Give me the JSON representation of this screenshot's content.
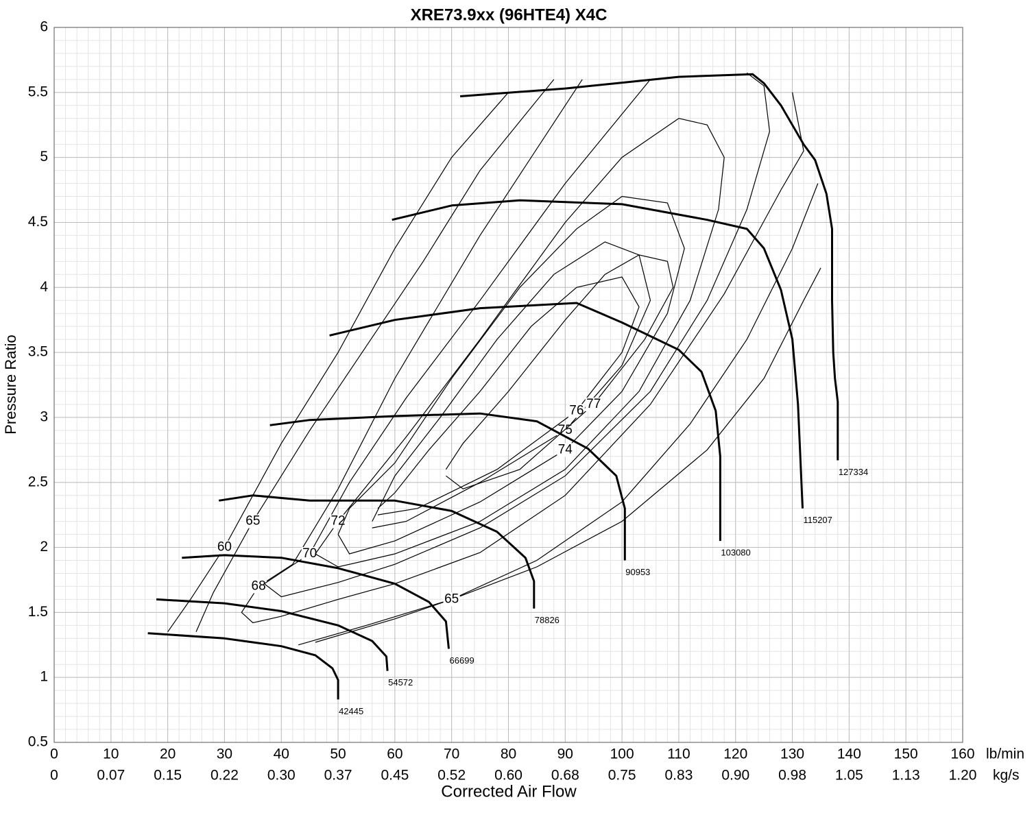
{
  "chart_data": {
    "type": "line",
    "title": "XRE73.9xx (96HTE4) X4C",
    "xlabel": "Corrected Air Flow",
    "ylabel": "Pressure Ratio",
    "xunit": "lb/min",
    "x2unit": "kg/s",
    "xlim": [
      0,
      160
    ],
    "ylim": [
      0.5,
      6
    ],
    "x2lim": [
      0,
      1.2096
    ],
    "xticks": [
      0,
      10,
      20,
      30,
      40,
      50,
      60,
      70,
      80,
      90,
      100,
      110,
      120,
      130,
      140,
      150,
      160
    ],
    "x2ticks": [
      0,
      {
        "value": 0.0756,
        "label": "0.07"
      },
      {
        "value": 0.1512,
        "label": "0.15"
      },
      {
        "value": 0.2268,
        "label": "0.22"
      },
      {
        "value": 0.3024,
        "label": "0.30"
      },
      {
        "value": 0.378,
        "label": "0.37"
      },
      {
        "value": 0.4536,
        "label": "0.45"
      },
      {
        "value": 0.5292,
        "label": "0.52"
      },
      {
        "value": 0.6048,
        "label": "0.60"
      },
      {
        "value": 0.6804,
        "label": "0.68"
      },
      {
        "value": 0.756,
        "label": "0.75"
      },
      {
        "value": 0.8316,
        "label": "0.83"
      },
      {
        "value": 0.9072,
        "label": "0.90"
      },
      {
        "value": 0.9828,
        "label": "0.98"
      },
      {
        "value": 1.0584,
        "label": "1.05"
      },
      {
        "value": 1.134,
        "label": "1.13"
      },
      {
        "value": 1.2096,
        "label": "1.20"
      }
    ],
    "yticks": [
      0.5,
      1,
      1.5,
      2,
      2.5,
      3,
      3.5,
      4,
      4.5,
      5,
      5.5,
      6
    ],
    "grid": true,
    "minor_grid": true,
    "series": [
      {
        "name": "42445",
        "color": "#000000",
        "x": [
          16.5,
          30,
          40,
          46,
          49,
          50,
          50
        ],
        "values": [
          1.34,
          1.3,
          1.24,
          1.17,
          1.07,
          0.98,
          0.83
        ]
      },
      {
        "name": "54572",
        "color": "#000000",
        "x": [
          18,
          30,
          40,
          50,
          56,
          58.5,
          58.7
        ],
        "values": [
          1.6,
          1.57,
          1.51,
          1.4,
          1.28,
          1.16,
          1.05
        ]
      },
      {
        "name": "66699",
        "color": "#000000",
        "x": [
          22.5,
          30,
          40,
          50,
          60,
          66,
          69,
          69.5
        ],
        "values": [
          1.92,
          1.94,
          1.92,
          1.84,
          1.72,
          1.58,
          1.43,
          1.22
        ]
      },
      {
        "name": "78826",
        "color": "#000000",
        "x": [
          29,
          35,
          45,
          60,
          70,
          78,
          83,
          84.5,
          84.5
        ],
        "values": [
          2.36,
          2.4,
          2.36,
          2.36,
          2.28,
          2.12,
          1.92,
          1.74,
          1.53
        ]
      },
      {
        "name": "90953",
        "color": "#000000",
        "x": [
          38,
          45,
          60,
          75,
          85,
          94,
          99,
          100.5,
          100.5
        ],
        "values": [
          2.94,
          2.98,
          3.01,
          3.03,
          2.97,
          2.76,
          2.55,
          2.3,
          1.9
        ]
      },
      {
        "name": "103080",
        "color": "#000000",
        "x": [
          48.5,
          60,
          75,
          92,
          100,
          110,
          114,
          116.5,
          117.3,
          117.3
        ],
        "values": [
          3.63,
          3.75,
          3.84,
          3.88,
          3.73,
          3.52,
          3.35,
          3.05,
          2.7,
          2.05
        ]
      },
      {
        "name": "115207",
        "color": "#000000",
        "x": [
          59.5,
          70,
          82,
          100,
          115,
          122,
          125,
          128,
          130,
          131,
          131.5,
          131.8
        ],
        "values": [
          4.52,
          4.63,
          4.67,
          4.64,
          4.52,
          4.45,
          4.3,
          3.98,
          3.6,
          3.1,
          2.6,
          2.3
        ]
      },
      {
        "name": "127334",
        "color": "#000000",
        "x": [
          71.5,
          90,
          110,
          123,
          125,
          128,
          132,
          134,
          136,
          137,
          137,
          137.2,
          137.5,
          138,
          138
        ],
        "values": [
          5.47,
          5.53,
          5.62,
          5.64,
          5.57,
          5.4,
          5.1,
          4.98,
          4.72,
          4.45,
          3.9,
          3.5,
          3.3,
          3.12,
          2.67
        ]
      }
    ],
    "contours": [
      {
        "name": "60",
        "color": "#000000",
        "x": [
          20,
          24,
          30,
          40,
          50,
          60,
          70,
          80,
          null,
          43,
          55,
          70,
          85,
          100,
          115,
          125,
          132,
          135
        ],
        "values": [
          1.35,
          1.6,
          2.0,
          2.8,
          3.5,
          4.3,
          5.0,
          5.5,
          null,
          1.25,
          1.4,
          1.6,
          1.85,
          2.2,
          2.75,
          3.3,
          3.9,
          4.15
        ]
      },
      {
        "name": "65",
        "color": "#000000",
        "x": [
          25,
          28,
          35,
          45,
          55,
          65,
          75,
          88,
          null,
          46,
          60,
          70,
          85,
          100,
          112,
          122,
          130,
          134.5
        ],
        "values": [
          1.35,
          1.65,
          2.2,
          2.9,
          3.55,
          4.2,
          4.9,
          5.6,
          null,
          1.27,
          1.45,
          1.6,
          1.9,
          2.35,
          2.95,
          3.6,
          4.3,
          4.8
        ]
      },
      {
        "name": "68",
        "color": "#000000",
        "x": [
          93,
          75,
          60,
          50,
          42,
          36,
          33,
          35,
          40,
          50,
          60,
          75,
          90,
          105,
          118,
          128,
          132,
          130
        ],
        "values": [
          5.6,
          4.4,
          3.3,
          2.45,
          1.87,
          1.7,
          1.5,
          1.42,
          1.47,
          1.6,
          1.72,
          1.96,
          2.4,
          3.1,
          3.95,
          4.75,
          5.05,
          5.5
        ]
      },
      {
        "name": "70",
        "color": "#000000",
        "x": [
          105,
          90,
          75,
          62,
          52,
          45,
          37,
          40,
          50,
          60,
          75,
          90,
          105,
          115,
          122,
          126,
          125,
          122
        ],
        "values": [
          5.6,
          4.8,
          3.9,
          3.15,
          2.5,
          1.95,
          1.72,
          1.62,
          1.73,
          1.87,
          2.15,
          2.55,
          3.2,
          3.9,
          4.6,
          5.2,
          5.55,
          5.65
        ]
      },
      {
        "name": "72",
        "color": "#000000",
        "x": [
          110,
          100,
          90,
          75,
          62,
          50,
          46,
          50,
          60,
          75,
          90,
          103,
          112,
          117,
          118,
          115,
          110
        ],
        "values": [
          5.3,
          5.0,
          4.5,
          3.6,
          2.85,
          2.2,
          1.95,
          1.85,
          1.95,
          2.2,
          2.6,
          3.2,
          3.9,
          4.6,
          5.0,
          5.25,
          5.3
        ]
      },
      {
        "name": "74",
        "color": "#000000",
        "x": [
          50,
          52,
          60,
          75,
          90,
          100,
          108,
          111,
          108,
          100,
          92,
          82,
          70,
          60,
          52,
          50
        ],
        "values": [
          2.1,
          1.95,
          2.05,
          2.35,
          2.75,
          3.2,
          3.8,
          4.3,
          4.65,
          4.7,
          4.45,
          4.0,
          3.3,
          2.65,
          2.3,
          2.1
        ]
      },
      {
        "name": "75",
        "color": "#000000",
        "x": [
          56,
          62,
          75,
          90,
          100,
          105,
          103,
          97,
          88,
          78,
          68,
          60,
          56
        ],
        "values": [
          2.15,
          2.2,
          2.5,
          2.9,
          3.4,
          3.9,
          4.25,
          4.35,
          4.1,
          3.6,
          3.0,
          2.55,
          2.2
        ]
      },
      {
        "name": "76",
        "color": "#000000",
        "x": [
          57,
          64,
          78,
          92,
          100,
          103,
          100,
          92,
          84,
          75,
          66,
          60,
          57
        ],
        "values": [
          2.25,
          2.3,
          2.6,
          3.05,
          3.5,
          3.85,
          4.08,
          4.0,
          3.7,
          3.2,
          2.75,
          2.42,
          2.3
        ]
      },
      {
        "name": "77",
        "color": "#000000",
        "x": [
          69,
          72,
          82,
          95,
          104,
          109,
          108,
          103,
          97,
          90,
          80,
          72,
          69
        ],
        "values": [
          2.55,
          2.45,
          2.6,
          3.1,
          3.6,
          4.0,
          4.2,
          4.25,
          4.1,
          3.75,
          3.2,
          2.8,
          2.6
        ]
      }
    ]
  }
}
